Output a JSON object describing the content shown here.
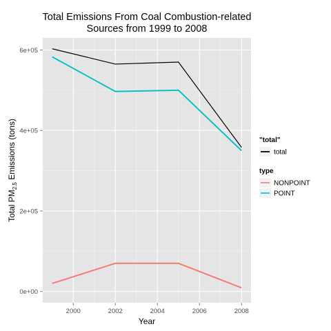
{
  "chart_data": {
    "type": "line",
    "title": [
      "Total Emissions From Coal Combustion-related",
      "Sources from 1999 to 2008"
    ],
    "xlabel": "Year",
    "ylabel": {
      "prefix": "Total PM",
      "subscript": "2.5",
      "suffix": " Emissions (tons)"
    },
    "x": [
      1999,
      2002,
      2005,
      2008
    ],
    "xlim": [
      1998.55,
      2008.45
    ],
    "ylim": [
      -28000,
      630000
    ],
    "x_ticks": [
      2000,
      2002,
      2004,
      2006,
      2008
    ],
    "x_tick_labels": [
      "2000",
      "2002",
      "2004",
      "2006",
      "2008"
    ],
    "y_ticks": [
      0,
      200000,
      400000,
      600000
    ],
    "y_tick_labels": [
      "0e+00",
      "2e+05",
      "4e+05",
      "6e+05"
    ],
    "grid": true,
    "legend_placement": "right",
    "series": [
      {
        "name": "total",
        "group": "\"total\"",
        "color": "#000000",
        "values": [
          603000,
          565000,
          570000,
          358000
        ]
      },
      {
        "name": "NONPOINT",
        "group": "type",
        "color": "#F8766D",
        "values": [
          20000,
          70000,
          70000,
          9000
        ]
      },
      {
        "name": "POINT",
        "group": "type",
        "color": "#00BFC4",
        "values": [
          583000,
          497000,
          500000,
          350000
        ]
      }
    ],
    "legend": [
      {
        "title": "\"total\"",
        "items": [
          {
            "label": "total",
            "color": "#000000"
          }
        ]
      },
      {
        "title": "type",
        "items": [
          {
            "label": "NONPOINT",
            "color": "#F8766D"
          },
          {
            "label": "POINT",
            "color": "#00BFC4"
          }
        ]
      }
    ]
  }
}
